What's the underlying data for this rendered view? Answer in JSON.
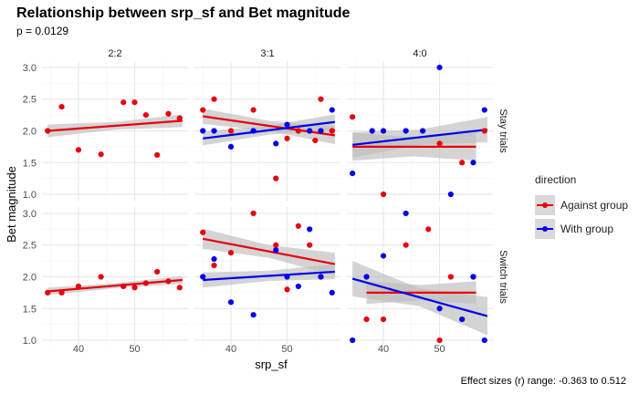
{
  "title": "Relationship between srp_sf and Bet magnitude",
  "subtitle": "p = 0.0129",
  "caption": "Effect sizes (r) range: -0.363 to 0.512",
  "colors": {
    "against": "#e8000b",
    "with": "#0000ee",
    "band": "#bdbdbd"
  },
  "legend": {
    "title": "direction",
    "items": [
      {
        "label": "Against group",
        "color": "#e8000b"
      },
      {
        "label": "With group",
        "color": "#0000ee"
      }
    ]
  },
  "chart_data": {
    "type": "scatter",
    "title": "Relationship between srp_sf and Bet magnitude",
    "subtitle": "p = 0.0129",
    "xlabel": "srp_sf",
    "ylabel": "Bet magnitude",
    "xlim": [
      33.5,
      59.5
    ],
    "ylim": [
      0.9,
      3.1
    ],
    "xticks": [
      40,
      50
    ],
    "yticks": [
      1.0,
      1.5,
      2.0,
      2.5,
      3.0
    ],
    "col_facets": [
      "2:2",
      "3:1",
      "4:0"
    ],
    "row_facets": [
      "Stay trials",
      "Switch trials"
    ],
    "panels": [
      {
        "row": "Stay trials",
        "col": "2:2",
        "series": [
          {
            "name": "Against group",
            "color": "#e8000b",
            "points": [
              [
                34.5,
                2.0
              ],
              [
                37,
                2.38
              ],
              [
                40,
                1.7
              ],
              [
                44,
                1.63
              ],
              [
                48,
                2.45
              ],
              [
                50,
                2.45
              ],
              [
                52,
                2.25
              ],
              [
                54,
                1.62
              ],
              [
                56,
                2.27
              ],
              [
                58,
                2.2
              ]
            ],
            "fit": [
              [
                34.5,
                2.0
              ],
              [
                58.5,
                2.16
              ]
            ],
            "band": [
              0.1,
              0.06,
              0.1
            ]
          }
        ]
      },
      {
        "row": "Stay trials",
        "col": "3:1",
        "series": [
          {
            "name": "Against group",
            "color": "#e8000b",
            "points": [
              [
                35,
                2.33
              ],
              [
                37,
                2.5
              ],
              [
                40,
                2.0
              ],
              [
                44,
                2.33
              ],
              [
                48,
                1.25
              ],
              [
                50,
                1.88
              ],
              [
                52,
                2.0
              ],
              [
                55,
                1.85
              ],
              [
                56,
                2.5
              ],
              [
                58,
                2.0
              ]
            ],
            "fit": [
              [
                35,
                2.23
              ],
              [
                58.5,
                1.93
              ]
            ],
            "band": [
              0.12,
              0.08,
              0.14
            ]
          },
          {
            "name": "With group",
            "color": "#0000ee",
            "points": [
              [
                35,
                2.0
              ],
              [
                37,
                2.0
              ],
              [
                40,
                1.75
              ],
              [
                44,
                2.0
              ],
              [
                48,
                1.8
              ],
              [
                50,
                2.1
              ],
              [
                54,
                2.0
              ],
              [
                56,
                2.0
              ],
              [
                58,
                2.33
              ]
            ],
            "fit": [
              [
                35,
                1.88
              ],
              [
                58.5,
                2.14
              ]
            ],
            "band": [
              0.11,
              0.07,
              0.12
            ]
          }
        ]
      },
      {
        "row": "Stay trials",
        "col": "4:0",
        "series": [
          {
            "name": "Against group",
            "color": "#e8000b",
            "points": [
              [
                34.5,
                2.22
              ],
              [
                40,
                1.0
              ],
              [
                50,
                1.8
              ],
              [
                54,
                1.5
              ],
              [
                58,
                2.0
              ]
            ],
            "fit": [
              [
                34.5,
                1.75
              ],
              [
                56.5,
                1.75
              ]
            ],
            "band": [
              0.22,
              0.15,
              0.22
            ]
          },
          {
            "name": "With group",
            "color": "#0000ee",
            "points": [
              [
                34.5,
                1.33
              ],
              [
                38,
                2.0
              ],
              [
                40,
                2.0
              ],
              [
                44,
                2.0
              ],
              [
                47,
                2.0
              ],
              [
                50,
                3.0
              ],
              [
                52,
                1.0
              ],
              [
                56,
                1.5
              ],
              [
                58,
                2.33
              ]
            ],
            "fit": [
              [
                34.5,
                1.78
              ],
              [
                58.5,
                2.02
              ]
            ],
            "band": [
              0.2,
              0.12,
              0.2
            ]
          }
        ]
      },
      {
        "row": "Switch trials",
        "col": "2:2",
        "series": [
          {
            "name": "Against group",
            "color": "#e8000b",
            "points": [
              [
                34.5,
                1.75
              ],
              [
                37,
                1.75
              ],
              [
                40,
                1.85
              ],
              [
                44,
                2.0
              ],
              [
                48,
                1.85
              ],
              [
                50,
                1.83
              ],
              [
                52,
                1.9
              ],
              [
                54,
                2.08
              ],
              [
                56,
                1.93
              ],
              [
                58,
                1.83
              ]
            ],
            "fit": [
              [
                34.5,
                1.77
              ],
              [
                58.5,
                1.95
              ]
            ],
            "band": [
              0.06,
              0.04,
              0.06
            ]
          }
        ]
      },
      {
        "row": "Switch trials",
        "col": "3:1",
        "series": [
          {
            "name": "Against group",
            "color": "#e8000b",
            "points": [
              [
                35,
                2.7
              ],
              [
                37,
                2.18
              ],
              [
                40,
                2.38
              ],
              [
                44,
                3.0
              ],
              [
                48,
                2.5
              ],
              [
                50,
                1.8
              ],
              [
                52,
                2.8
              ],
              [
                54,
                2.5
              ],
              [
                56,
                2.0
              ]
            ],
            "fit": [
              [
                35,
                2.6
              ],
              [
                58.5,
                2.2
              ]
            ],
            "band": [
              0.16,
              0.1,
              0.18
            ]
          },
          {
            "name": "With group",
            "color": "#0000ee",
            "points": [
              [
                35,
                2.0
              ],
              [
                37,
                2.28
              ],
              [
                40,
                1.6
              ],
              [
                44,
                1.4
              ],
              [
                48,
                2.42
              ],
              [
                50,
                2.0
              ],
              [
                52,
                1.85
              ],
              [
                54,
                2.75
              ],
              [
                56,
                2.0
              ],
              [
                58,
                1.75
              ]
            ],
            "fit": [
              [
                35,
                1.95
              ],
              [
                58.5,
                2.08
              ]
            ],
            "band": [
              0.12,
              0.08,
              0.12
            ]
          }
        ]
      },
      {
        "row": "Switch trials",
        "col": "4:0",
        "series": [
          {
            "name": "Against group",
            "color": "#e8000b",
            "points": [
              [
                37,
                1.33
              ],
              [
                40,
                1.33
              ],
              [
                44,
                2.5
              ],
              [
                48,
                2.75
              ],
              [
                50,
                1.0
              ],
              [
                52,
                2.0
              ],
              [
                56,
                2.0
              ]
            ],
            "fit": [
              [
                37,
                1.75
              ],
              [
                56.5,
                1.75
              ]
            ],
            "band": [
              0.18,
              0.12,
              0.18
            ]
          },
          {
            "name": "With group",
            "color": "#0000ee",
            "points": [
              [
                34.5,
                1.0
              ],
              [
                37,
                2.0
              ],
              [
                40,
                2.33
              ],
              [
                44,
                3.0
              ],
              [
                50,
                1.5
              ],
              [
                54,
                1.33
              ],
              [
                56,
                2.0
              ],
              [
                58,
                1.0
              ]
            ],
            "fit": [
              [
                34.5,
                1.97
              ],
              [
                58.5,
                1.38
              ]
            ],
            "band": [
              0.28,
              0.14,
              0.3
            ]
          }
        ]
      }
    ]
  }
}
